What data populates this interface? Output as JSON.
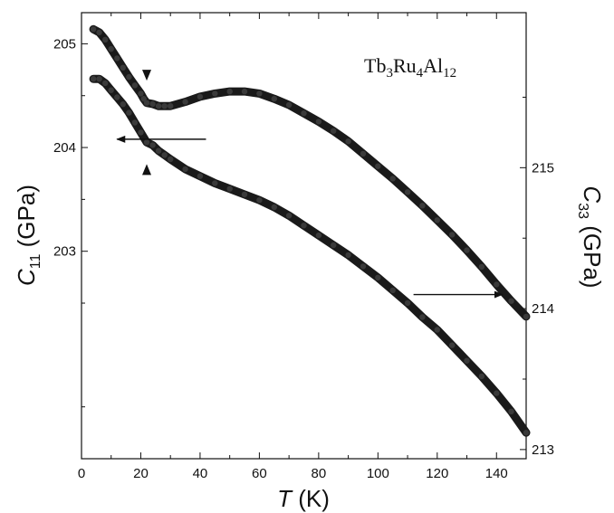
{
  "chart_data": {
    "type": "scatter",
    "annotation": {
      "label_parts": [
        "Tb",
        "3",
        "Ru",
        "4",
        "Al",
        "12"
      ]
    },
    "x_axis": {
      "label_var": "T",
      "label_unit": " (K)",
      "ticks": [
        0,
        20,
        40,
        60,
        80,
        100,
        120,
        140
      ],
      "tick_labels": [
        "0",
        "20",
        "40",
        "60",
        "80",
        "100",
        "120",
        "140"
      ],
      "range": [
        0,
        150
      ]
    },
    "y_left": {
      "label_var": "C",
      "label_sub": "11",
      "label_unit": " (GPa)",
      "ticks": [
        203,
        204,
        205
      ],
      "tick_labels": [
        "203",
        "204",
        "205"
      ],
      "range": [
        201.0,
        205.3
      ]
    },
    "y_right": {
      "label_var": "C",
      "label_sub": "33",
      "label_unit": " (GPa)",
      "ticks": [
        213,
        214,
        215
      ],
      "tick_labels": [
        "213",
        "214",
        "215"
      ],
      "range": [
        212.935,
        216.1
      ]
    },
    "series": [
      {
        "axis": "left",
        "x": [
          4,
          6,
          8,
          10,
          12,
          14,
          16,
          18,
          20,
          21,
          22,
          24,
          26,
          28,
          30,
          35,
          40,
          45,
          50,
          55,
          60,
          65,
          70,
          75,
          80,
          85,
          90,
          95,
          100,
          105,
          110,
          115,
          120,
          125,
          130,
          135,
          140,
          145,
          150
        ],
        "y": [
          205.14,
          205.11,
          205.04,
          204.95,
          204.86,
          204.77,
          204.68,
          204.6,
          204.52,
          204.47,
          204.43,
          204.42,
          204.4,
          204.4,
          204.4,
          204.44,
          204.49,
          204.52,
          204.54,
          204.54,
          204.52,
          204.47,
          204.41,
          204.33,
          204.25,
          204.16,
          204.06,
          203.94,
          203.82,
          203.7,
          203.57,
          203.44,
          203.3,
          203.16,
          203.01,
          202.85,
          202.68,
          202.52,
          202.37
        ]
      },
      {
        "axis": "right",
        "x": [
          4,
          6,
          8,
          10,
          12,
          14,
          16,
          18,
          20,
          22,
          24,
          26,
          28,
          30,
          35,
          40,
          45,
          50,
          55,
          60,
          65,
          70,
          75,
          80,
          85,
          90,
          95,
          100,
          105,
          110,
          115,
          120,
          125,
          130,
          135,
          140,
          145,
          150
        ],
        "y": [
          215.63,
          215.63,
          215.6,
          215.55,
          215.5,
          215.45,
          215.39,
          215.32,
          215.25,
          215.18,
          215.16,
          215.12,
          215.09,
          215.06,
          214.99,
          214.94,
          214.89,
          214.85,
          214.81,
          214.77,
          214.72,
          214.66,
          214.59,
          214.52,
          214.45,
          214.38,
          214.3,
          214.22,
          214.13,
          214.04,
          213.94,
          213.85,
          213.74,
          213.63,
          213.52,
          213.4,
          213.27,
          213.12
        ]
      }
    ],
    "arrows": [
      {
        "axis": "left",
        "from_x": 42,
        "to_x": 12,
        "y": 204.08
      },
      {
        "axis": "right",
        "from_x": 112,
        "to_x": 142,
        "y": 214.1
      }
    ],
    "markers": [
      {
        "axis": "left",
        "x": 22,
        "y": 204.68,
        "direction": "down"
      },
      {
        "axis": "right",
        "x": 22,
        "y": 215.0,
        "direction": "up"
      }
    ],
    "grid": false,
    "legend": "none"
  }
}
